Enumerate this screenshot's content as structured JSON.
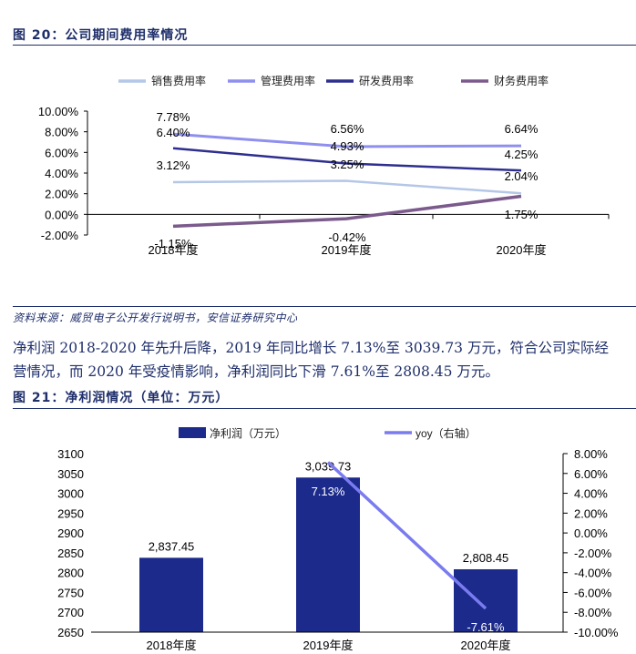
{
  "fig20": {
    "title": "图 20：公司期间费用率情况"
  },
  "source": "资料来源：威贸电子公开发行说明书，安信证券研究中心",
  "paragraph": {
    "line1": "净利润 2018-2020 年先升后降，2019 年同比增长 7.13%至 3039.73 万元，符合公司实际经",
    "line2": "营情况，而 2020 年受疫情影响，净利润同比下滑 7.61%至 2808.45 万元。"
  },
  "fig21": {
    "title": "图 21：净利润情况（单位：万元）"
  },
  "chart_data": [
    {
      "type": "line",
      "categories": [
        "2018年度",
        "2019年度",
        "2020年度"
      ],
      "series": [
        {
          "name": "销售费用率",
          "color": "#b4c7e7",
          "values": [
            3.12,
            3.25,
            2.04
          ],
          "labels": [
            "3.12%",
            "3.25%",
            "2.04%"
          ]
        },
        {
          "name": "管理费用率",
          "color": "#8f8fef",
          "values": [
            7.78,
            6.56,
            6.64
          ],
          "labels": [
            "7.78%",
            "6.56%",
            "6.64%"
          ]
        },
        {
          "name": "研发费用率",
          "color": "#2e2e8f",
          "values": [
            6.4,
            4.93,
            4.25
          ],
          "labels": [
            "6.40%",
            "4.93%",
            "4.25%"
          ]
        },
        {
          "name": "财务费用率",
          "color": "#7b5a8c",
          "values": [
            -1.15,
            -0.42,
            1.75
          ],
          "labels": [
            "-1.15%",
            "-0.42%",
            "1.75%"
          ]
        }
      ],
      "yticks": [
        "10.00%",
        "8.00%",
        "6.00%",
        "4.00%",
        "2.00%",
        "0.00%",
        "-2.00%"
      ],
      "ylim": [
        -2,
        10
      ],
      "legend": "top"
    },
    {
      "type": "bar",
      "categories": [
        "2018年度",
        "2019年度",
        "2020年度"
      ],
      "series": [
        {
          "name": "净利润（万元）",
          "type": "bar",
          "color": "#1c2a8c",
          "values": [
            2837.45,
            3039.73,
            2808.45
          ],
          "labels": [
            "2,837.45",
            "3,039.73",
            "2,808.45"
          ]
        },
        {
          "name": "yoy（右轴）",
          "type": "line",
          "axis": "right",
          "color": "#7b7bf0",
          "values": [
            null,
            7.13,
            -7.61
          ],
          "labels": [
            "",
            "7.13%",
            "-7.61%"
          ]
        }
      ],
      "yticks_left": [
        "3100",
        "3050",
        "3000",
        "2950",
        "2900",
        "2850",
        "2800",
        "2750",
        "2700",
        "2650"
      ],
      "ylim_left": [
        2650,
        3100
      ],
      "yticks_right": [
        "8.00%",
        "6.00%",
        "4.00%",
        "2.00%",
        "0.00%",
        "-2.00%",
        "-4.00%",
        "-6.00%",
        "-8.00%",
        "-10.00%"
      ],
      "ylim_right": [
        -10,
        8
      ],
      "legend": "top"
    }
  ]
}
